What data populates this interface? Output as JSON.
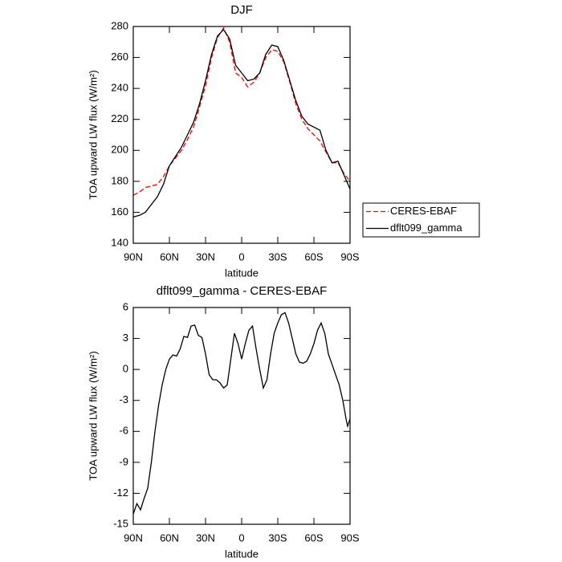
{
  "chart_data": [
    {
      "type": "line",
      "title": "DJF",
      "xlabel": "latitude",
      "ylabel": "TOA upward LW flux (W/m²)",
      "x": [
        90,
        85,
        80,
        75,
        70,
        65,
        60,
        55,
        50,
        45,
        40,
        35,
        30,
        25,
        20,
        15,
        10,
        5,
        0,
        -5,
        -10,
        -15,
        -20,
        -25,
        -30,
        -35,
        -40,
        -45,
        -50,
        -55,
        -60,
        -65,
        -70,
        -75,
        -80,
        -85,
        -90
      ],
      "series": [
        {
          "name": "CERES-EBAF",
          "color": "#ff0000",
          "line_style": "dashed",
          "values": [
            171,
            173,
            176,
            177,
            178,
            183,
            190,
            195,
            200,
            207,
            215,
            228,
            242,
            260,
            273,
            279,
            270,
            250,
            247,
            241,
            244,
            250,
            260,
            265,
            264,
            257,
            244,
            230,
            220,
            214,
            210,
            206,
            199,
            192,
            192,
            185,
            180
          ]
        },
        {
          "name": "dflt099_gamma",
          "color": "#000000",
          "line_style": "solid",
          "values": [
            157,
            158,
            160,
            165,
            170,
            178,
            190,
            196,
            202,
            210,
            218,
            230,
            245,
            262,
            274,
            278,
            272,
            255,
            250,
            245,
            246,
            250,
            262,
            268,
            267,
            258,
            245,
            232,
            222,
            217,
            215,
            213,
            200,
            192,
            193,
            184,
            175
          ]
        }
      ],
      "xlim": [
        90,
        -90
      ],
      "xticks": [
        {
          "value": 90,
          "label": "90N"
        },
        {
          "value": 60,
          "label": "60N"
        },
        {
          "value": 30,
          "label": "30N"
        },
        0,
        {
          "value": -30,
          "label": "30S"
        },
        {
          "value": -60,
          "label": "60S"
        },
        {
          "value": -90,
          "label": "90S"
        }
      ],
      "ylim": [
        140,
        280
      ],
      "yticks": [
        140,
        160,
        180,
        200,
        220,
        240,
        260,
        280
      ],
      "legend": "right"
    },
    {
      "type": "line",
      "title": "dflt099_gamma - CERES-EBAF",
      "xlabel": "latitude",
      "ylabel": "TOA upward LW flux (W/m²)",
      "x": [
        90,
        87,
        84,
        81,
        78,
        75,
        72,
        69,
        66,
        63,
        60,
        57,
        54,
        51,
        48,
        45,
        42,
        39,
        36,
        33,
        30,
        27,
        24,
        21,
        18,
        15,
        12,
        9,
        6,
        3,
        0,
        -3,
        -6,
        -9,
        -12,
        -15,
        -18,
        -21,
        -24,
        -27,
        -30,
        -33,
        -36,
        -39,
        -42,
        -45,
        -48,
        -51,
        -54,
        -57,
        -60,
        -63,
        -66,
        -69,
        -72,
        -75,
        -78,
        -81,
        -84,
        -87,
        -88,
        -90
      ],
      "values": [
        -14,
        -13,
        -13.6,
        -12.5,
        -11.5,
        -9,
        -6,
        -3.5,
        -1.5,
        0,
        1,
        1.4,
        1.3,
        2,
        3.2,
        3.1,
        4.2,
        4.3,
        3.3,
        3.1,
        1.5,
        -0.5,
        -1,
        -1,
        -1.3,
        -1.8,
        -1.5,
        1,
        3.5,
        2.5,
        1,
        2.5,
        3.8,
        4.2,
        2,
        0,
        -1.8,
        -1,
        1.5,
        3.5,
        4.5,
        5.3,
        5.5,
        4.5,
        3,
        1.5,
        0.7,
        0.6,
        0.8,
        1.5,
        2.5,
        3.8,
        4.5,
        3.5,
        1.5,
        0.5,
        -0.5,
        -1.5,
        -3,
        -5,
        -5.5,
        -4.8
      ],
      "color": "#000000",
      "xlim": [
        90,
        -90
      ],
      "xticks": [
        {
          "value": 90,
          "label": "90N"
        },
        {
          "value": 60,
          "label": "60N"
        },
        {
          "value": 30,
          "label": "30N"
        },
        0,
        {
          "value": -30,
          "label": "30S"
        },
        {
          "value": -60,
          "label": "60S"
        },
        {
          "value": -90,
          "label": "90S"
        }
      ],
      "ylim": [
        -15,
        6
      ],
      "yticks": [
        -15,
        -12,
        -9,
        -6,
        -3,
        0,
        3,
        6
      ]
    }
  ]
}
